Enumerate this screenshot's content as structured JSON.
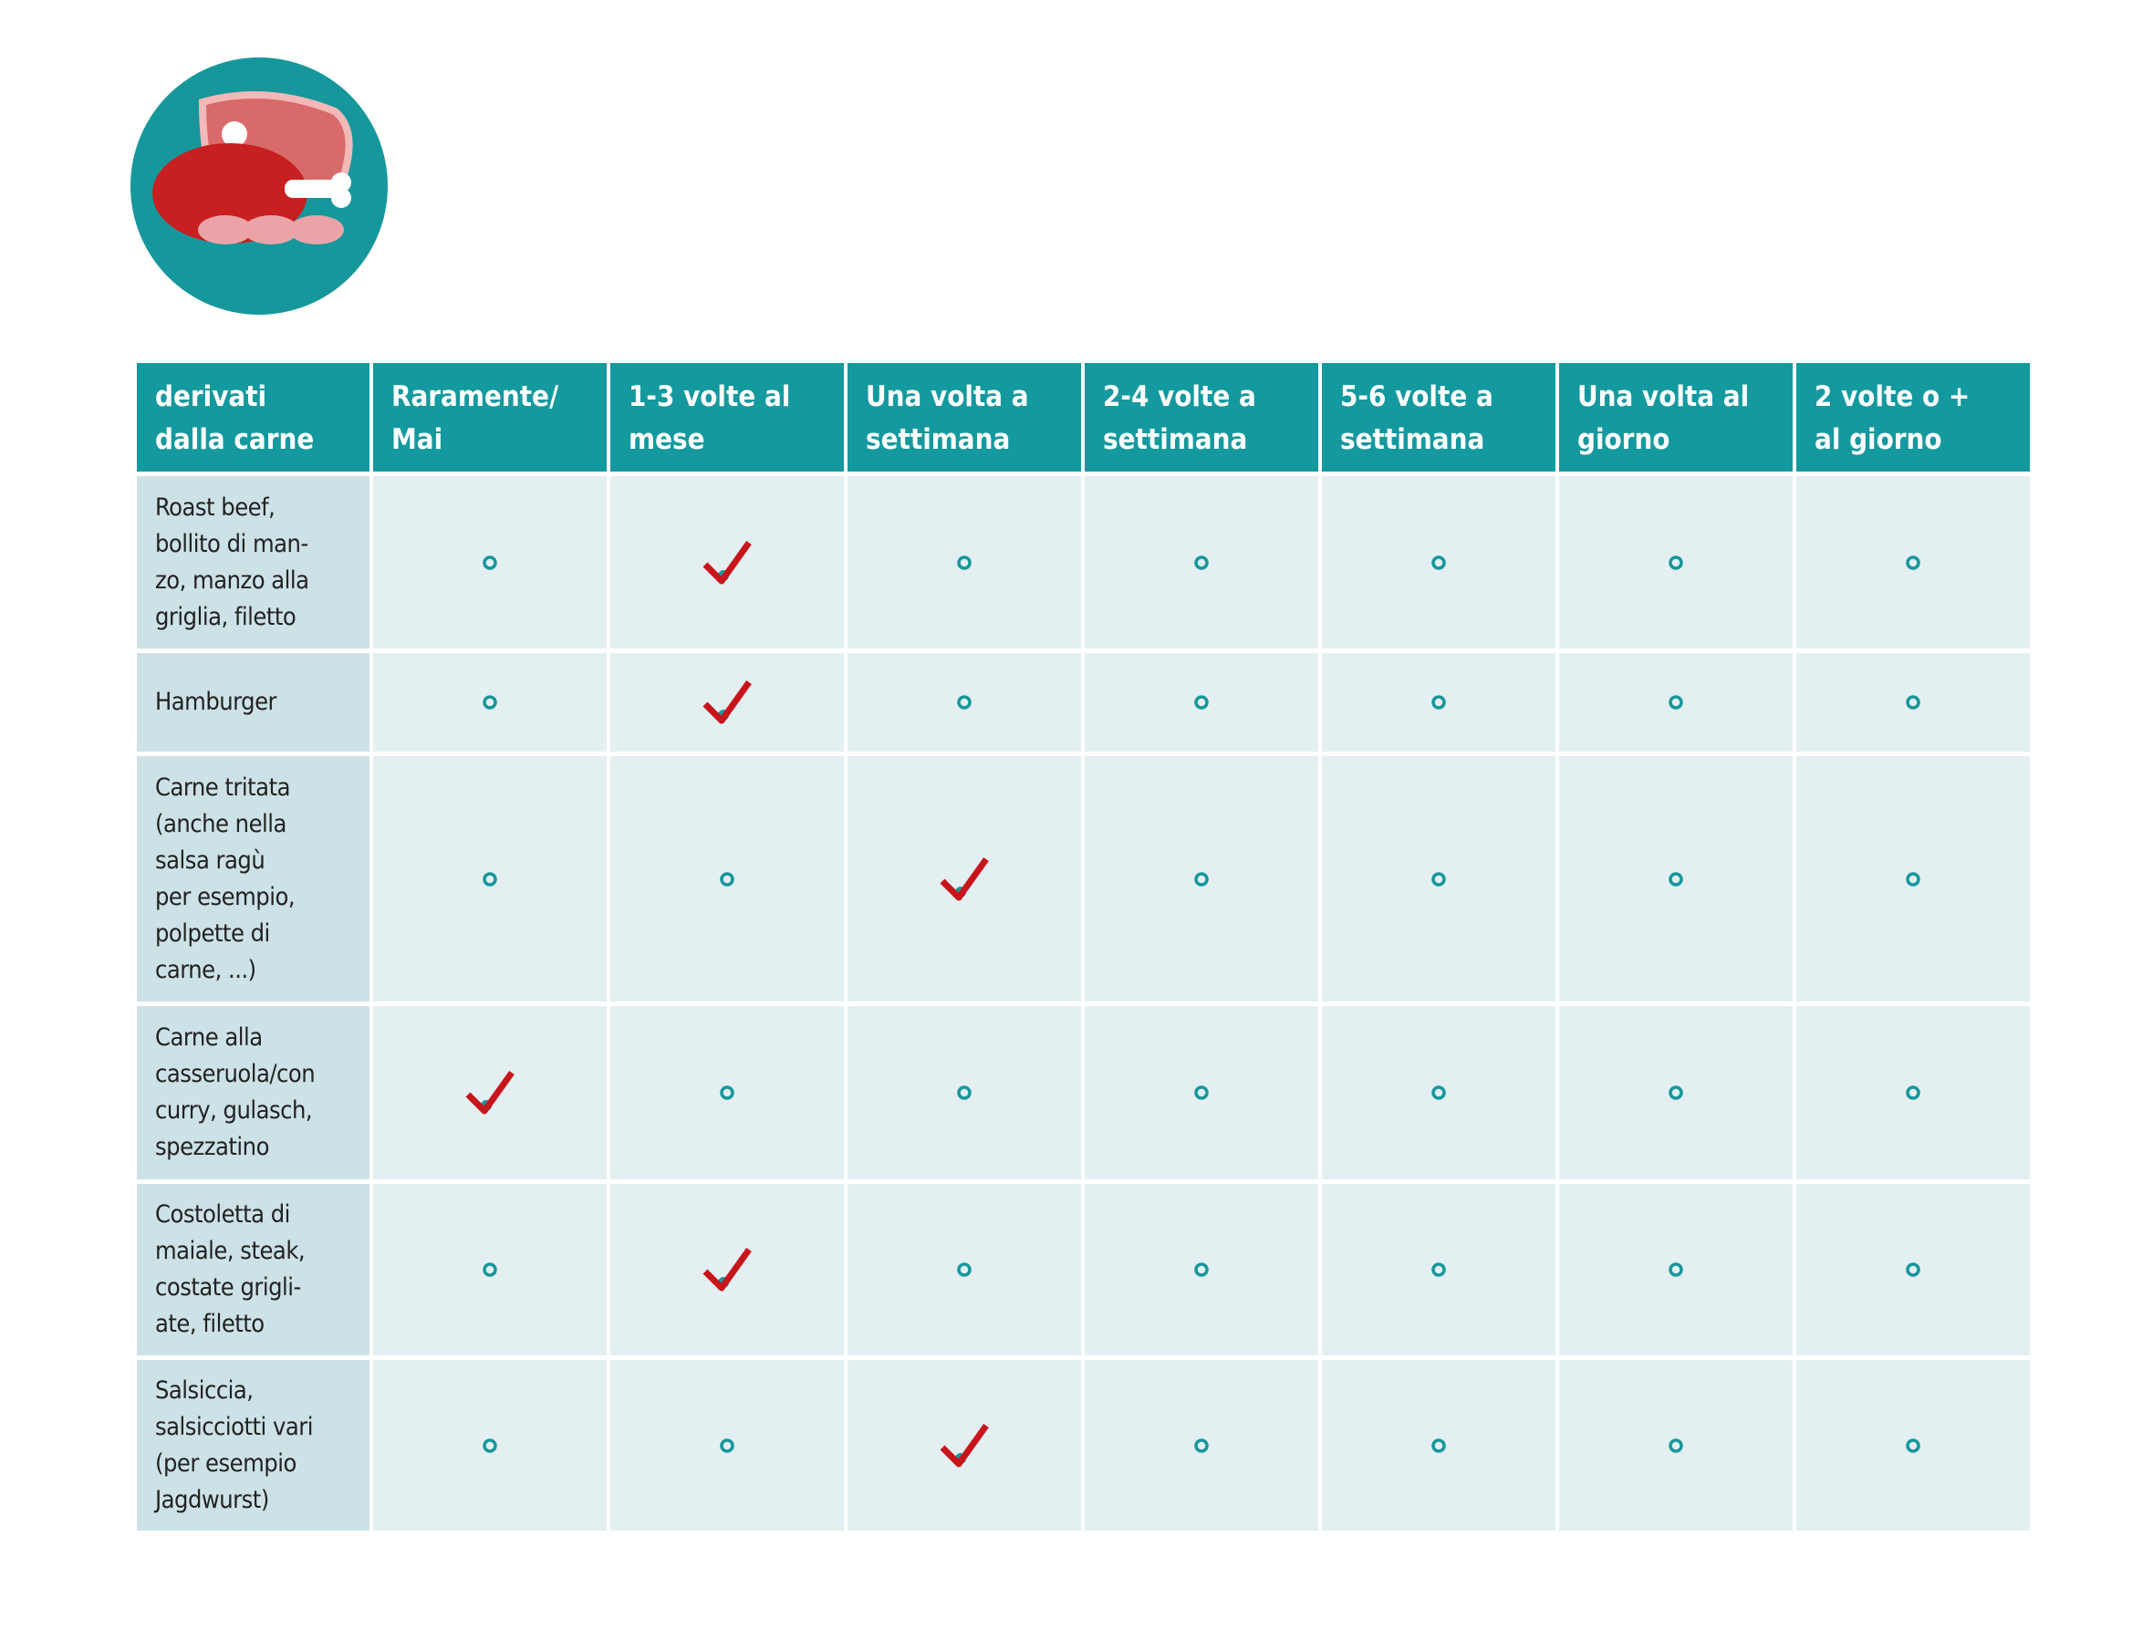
{
  "table": {
    "header": [
      "derivati\ndalla carne",
      "Raramente/\nMai",
      "1-3 volte al\nmese",
      "Una volta a\nsettimana",
      "2-4 volte a\nsettimana",
      "5-6 volte a\nsettimana",
      "Una volta al\ngiorno",
      "2 volte o +\nal giorno"
    ],
    "rows": [
      {
        "label": "Roast beef,\nbollito di man-\nzo, manzo alla\ngriglia, filetto",
        "options": [
          false,
          true,
          false,
          false,
          false,
          false,
          false
        ]
      },
      {
        "label": "Hamburger",
        "options": [
          false,
          true,
          false,
          false,
          false,
          false,
          false
        ]
      },
      {
        "label": "Carne tritata\n(anche nella\nsalsa ragù\nper esempio,\npolpette di\ncarne, ...)",
        "options": [
          false,
          false,
          true,
          false,
          false,
          false,
          false
        ]
      },
      {
        "label": "Carne alla\ncasseruola/con\ncurry, gulasch,\nspezzatino",
        "options": [
          true,
          false,
          false,
          false,
          false,
          false,
          false
        ]
      },
      {
        "label": "Costoletta di\nmaiale, steak,\ncostate grigli-\nate, filetto",
        "options": [
          false,
          true,
          false,
          false,
          false,
          false,
          false
        ]
      },
      {
        "label": "Salsiccia,\nsalsicciotti vari\n(per esempio\nJagdwurst)",
        "options": [
          false,
          false,
          true,
          false,
          false,
          false,
          false
        ]
      }
    ]
  }
}
